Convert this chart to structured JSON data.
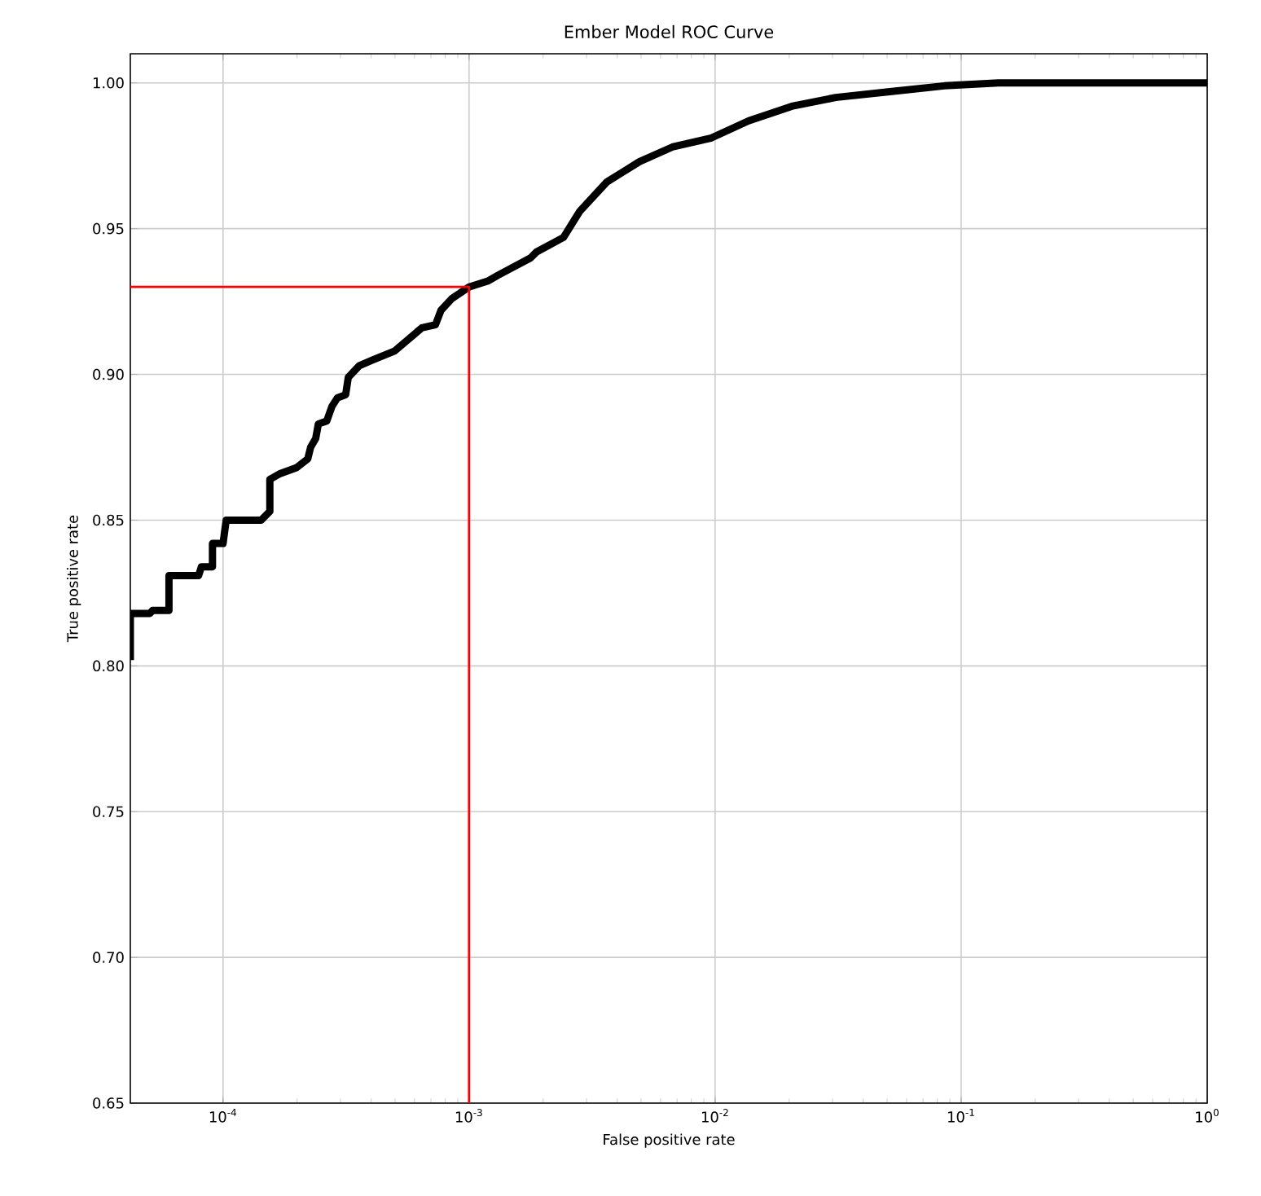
{
  "chart_data": {
    "type": "line",
    "title": "Ember Model ROC Curve",
    "xlabel": "False positive rate",
    "ylabel": "True positive rate",
    "log": "x",
    "grid": true,
    "xlim": [
      4.2e-05,
      1
    ],
    "ylim": [
      0.65,
      1.01
    ],
    "xticks": [
      {
        "value": 0.0001,
        "label": "10$^{-4}$"
      },
      {
        "value": 0.001,
        "label": "10$^{-3}$"
      },
      {
        "value": 0.01,
        "label": "10$^{-2}$"
      },
      {
        "value": 0.1,
        "label": "10$^{-1}$"
      },
      {
        "value": 1,
        "label": "10$^{0}$"
      }
    ],
    "yticks": [
      {
        "value": 0.65,
        "label": "0.65"
      },
      {
        "value": 0.7,
        "label": "0.70"
      },
      {
        "value": 0.75,
        "label": "0.75"
      },
      {
        "value": 0.8,
        "label": "0.80"
      },
      {
        "value": 0.85,
        "label": "0.85"
      },
      {
        "value": 0.9,
        "label": "0.90"
      },
      {
        "value": 0.95,
        "label": "0.95"
      },
      {
        "value": 1,
        "label": "1.00"
      }
    ],
    "series": [
      {
        "color": "#000000",
        "x": [
          4.2e-05,
          4.2e-05,
          5.04e-05,
          5.17e-05,
          6.03e-05,
          6.03e-05,
          7.96e-05,
          8.17e-05,
          9.06e-05,
          9.06e-05,
          0.0001,
          0.000103,
          0.000143,
          0.000155,
          0.000155,
          0.000171,
          0.000199,
          0.000221,
          0.000227,
          0.000238,
          0.000244,
          0.000264,
          0.000277,
          0.000292,
          0.000315,
          0.000323,
          0.000358,
          0.000407,
          0.000498,
          0.000566,
          0.000643,
          0.00073,
          0.000769,
          0.000851,
          0.001,
          0.00119,
          0.00131,
          0.00178,
          0.00188,
          0.00242,
          0.00282,
          0.00363,
          0.00493,
          0.0067,
          0.00958,
          0.0137,
          0.0205,
          0.0309,
          0.0513,
          0.0855,
          0.142,
          0.237,
          1
        ],
        "values": [
          0.802,
          0.818,
          0.818,
          0.819,
          0.819,
          0.831,
          0.831,
          0.834,
          0.834,
          0.842,
          0.842,
          0.85,
          0.85,
          0.853,
          0.864,
          0.866,
          0.868,
          0.871,
          0.875,
          0.878,
          0.883,
          0.884,
          0.889,
          0.892,
          0.893,
          0.899,
          0.903,
          0.905,
          0.908,
          0.912,
          0.916,
          0.917,
          0.922,
          0.926,
          0.93,
          0.932,
          0.934,
          0.94,
          0.942,
          0.947,
          0.956,
          0.966,
          0.973,
          0.978,
          0.981,
          0.987,
          0.992,
          0.995,
          0.997,
          0.999,
          1.0,
          1.0,
          1.0
        ]
      },
      {
        "color": "#ff0000",
        "x": [
          4.2e-05,
          0.001,
          0.001
        ],
        "values": [
          0.93,
          0.93,
          0.65
        ]
      }
    ]
  }
}
